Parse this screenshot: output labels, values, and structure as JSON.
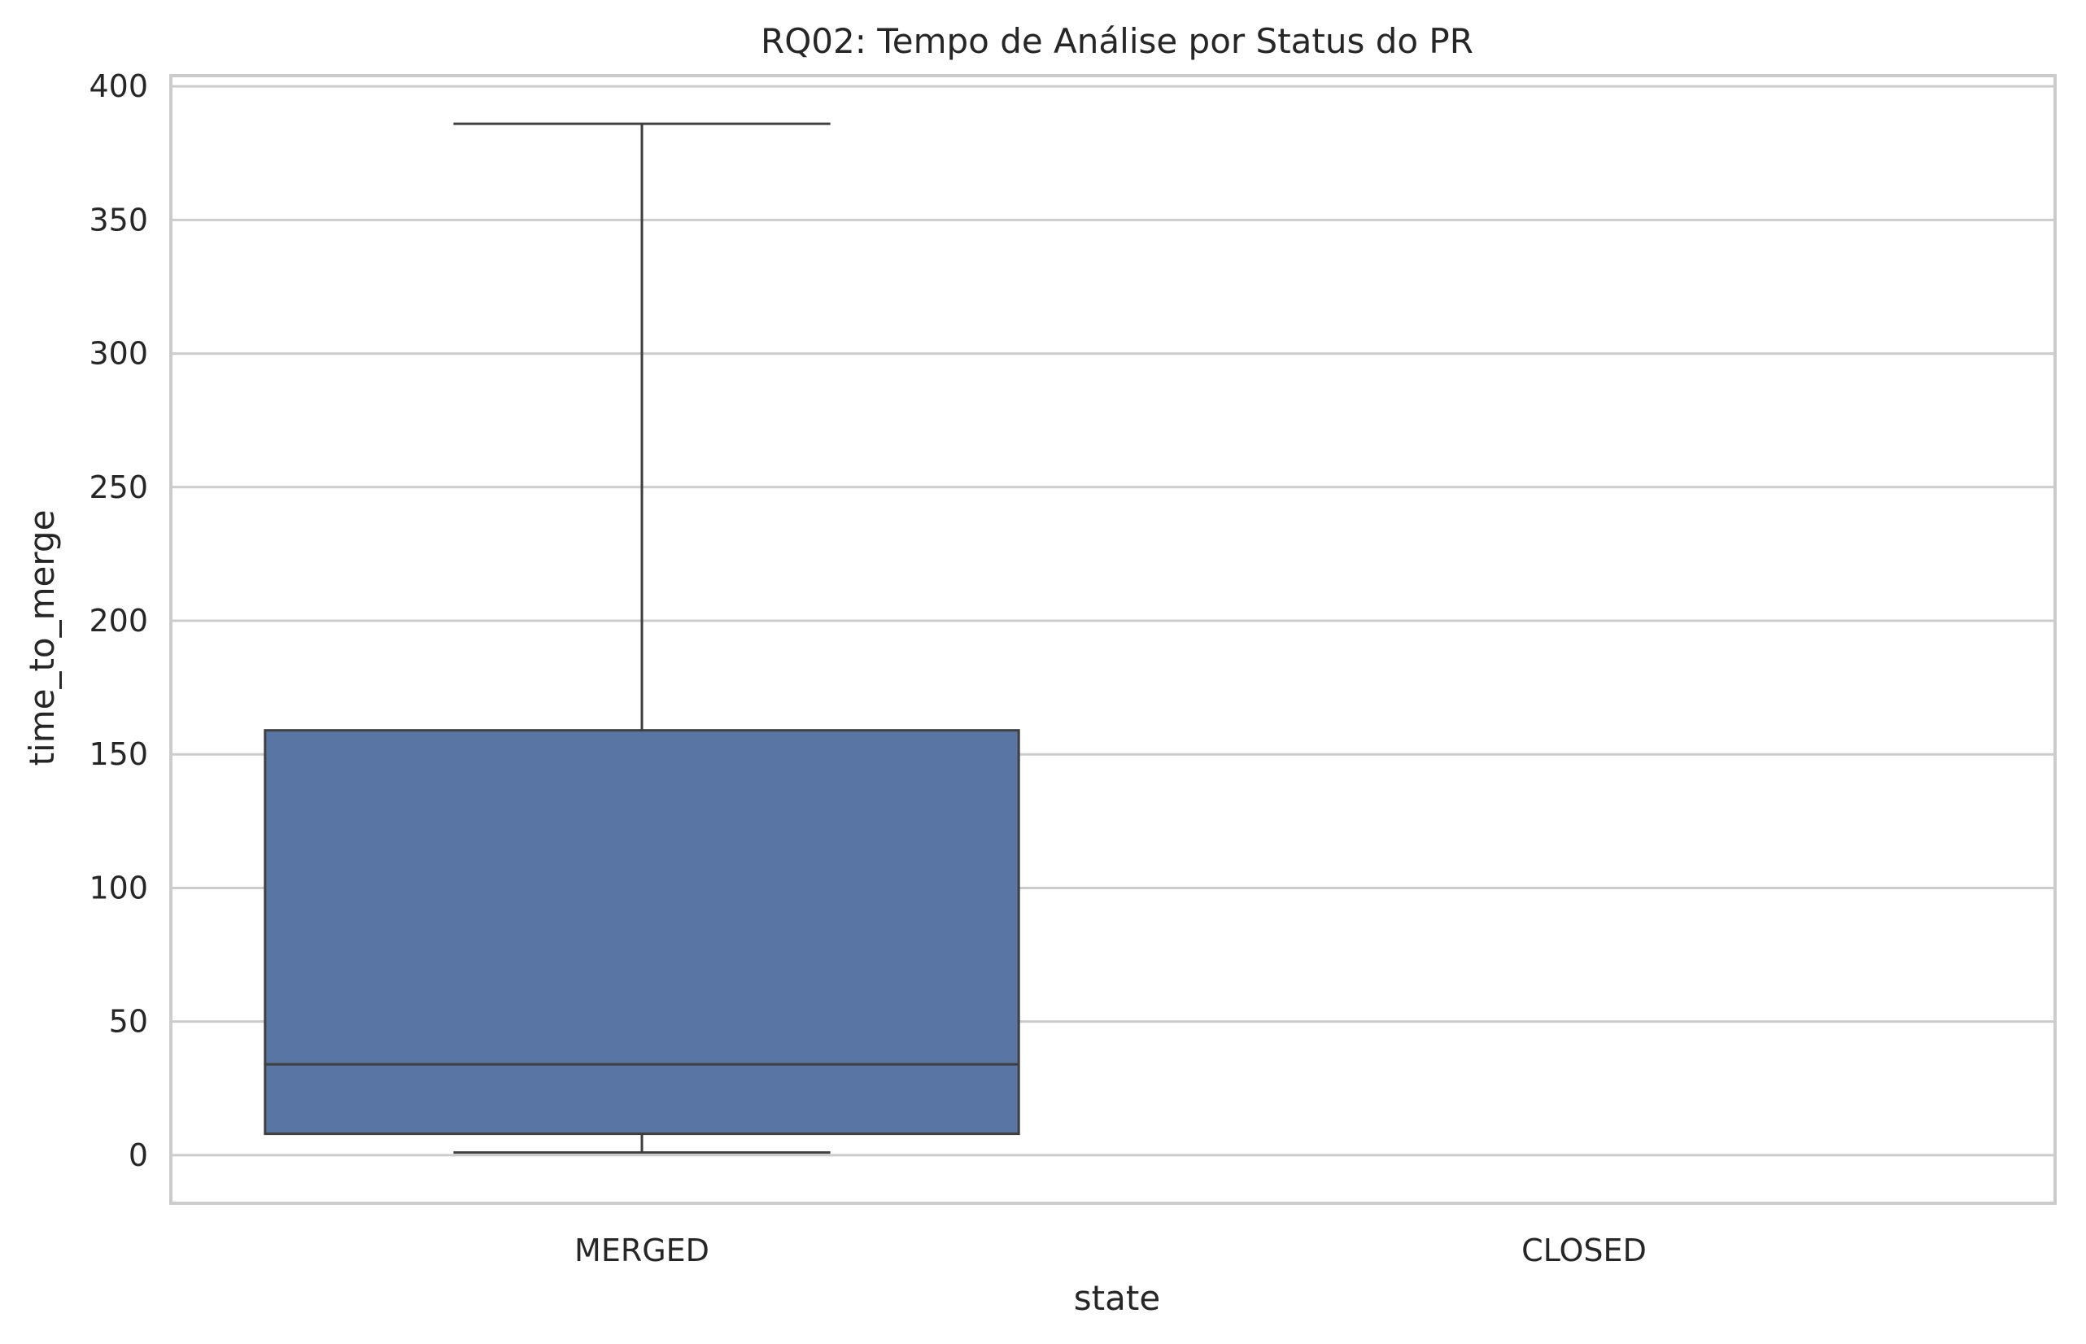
{
  "chart_data": {
    "type": "box",
    "title": "RQ02: Tempo de Análise por Status do PR",
    "xlabel": "state",
    "ylabel": "time_to_merge",
    "categories": [
      "MERGED",
      "CLOSED"
    ],
    "ylim": [
      -18,
      404
    ],
    "yticks": [
      0,
      50,
      100,
      150,
      200,
      250,
      300,
      350,
      400
    ],
    "grid": "horizontal",
    "box_color": "#5875a4",
    "boxes": [
      {
        "category": "MERGED",
        "whisker_low": 1,
        "q1": 8,
        "median": 34,
        "q3": 159,
        "whisker_high": 386
      },
      {
        "category": "CLOSED"
      }
    ]
  }
}
